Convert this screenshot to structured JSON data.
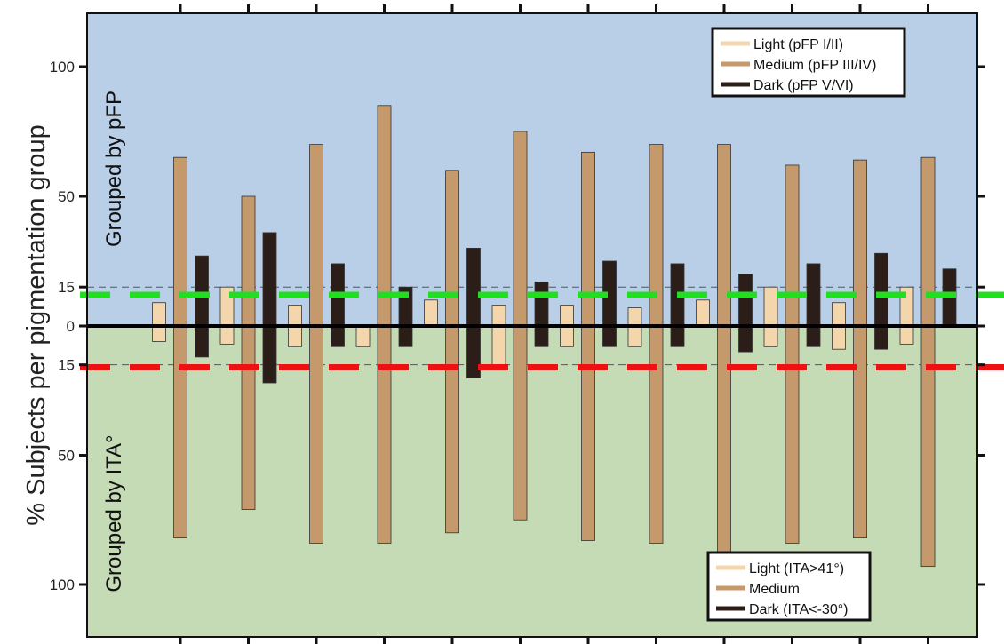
{
  "chart_data": {
    "type": "bar",
    "ylabel": "% Subjects per pigmentation group",
    "regions": {
      "top": {
        "label": "Grouped by pFP",
        "color": "#b9cfe8"
      },
      "bottom": {
        "label": "Grouped by ITA°",
        "color": "#c5dbb5"
      }
    },
    "y_top_ticks": [
      {
        "value": 15,
        "label": "15"
      },
      {
        "value": 50,
        "label": "50"
      },
      {
        "value": 100,
        "label": "100"
      }
    ],
    "y_bottom_ticks": [
      {
        "value": 15,
        "label": "15"
      },
      {
        "value": 50,
        "label": "50"
      },
      {
        "value": 100,
        "label": "100"
      }
    ],
    "zero_label": "0",
    "y_range_top": [
      0,
      100
    ],
    "y_range_bottom": [
      0,
      100
    ],
    "threshold_lines": [
      {
        "side": "top",
        "value": 12,
        "color": "#22dd22"
      },
      {
        "side": "bottom",
        "value": 16,
        "color": "#ee1111"
      }
    ],
    "reference_lines": [
      {
        "side": "top",
        "value": 15
      },
      {
        "side": "bottom",
        "value": 15
      }
    ],
    "series_colors": {
      "light": "#f4d6ac",
      "medium": "#c49a6c",
      "dark": "#2b1d17"
    },
    "top_legend": {
      "placement": "top-right",
      "entries": [
        {
          "label": "Light (pFP I/II)",
          "key": "light"
        },
        {
          "label": "Medium (pFP III/IV)",
          "key": "medium"
        },
        {
          "label": "Dark (pFP V/VI)",
          "key": "dark"
        }
      ]
    },
    "bottom_legend": {
      "placement": "bottom-right",
      "entries": [
        {
          "label": "Light (ITA>41°)",
          "key": "light"
        },
        {
          "label": "Medium",
          "key": "medium"
        },
        {
          "label": "Dark (ITA<-30°)",
          "key": "dark"
        }
      ]
    },
    "groups": [
      {
        "top": {
          "light": 9,
          "medium": 65,
          "dark": 27
        },
        "bottom": {
          "light": 6,
          "medium": 82,
          "dark": 12
        }
      },
      {
        "top": {
          "light": 15,
          "medium": 50,
          "dark": 36
        },
        "bottom": {
          "light": 7,
          "medium": 71,
          "dark": 22
        }
      },
      {
        "top": {
          "light": 8,
          "medium": 70,
          "dark": 24
        },
        "bottom": {
          "light": 8,
          "medium": 84,
          "dark": 8
        }
      },
      {
        "top": {
          "light": 0,
          "medium": 85,
          "dark": 15
        },
        "bottom": {
          "light": 8,
          "medium": 84,
          "dark": 8
        }
      },
      {
        "top": {
          "light": 10,
          "medium": 60,
          "dark": 30
        },
        "bottom": {
          "light": 0,
          "medium": 80,
          "dark": 20
        }
      },
      {
        "top": {
          "light": 8,
          "medium": 75,
          "dark": 17
        },
        "bottom": {
          "light": 15,
          "medium": 75,
          "dark": 8
        }
      },
      {
        "top": {
          "light": 8,
          "medium": 67,
          "dark": 25
        },
        "bottom": {
          "light": 8,
          "medium": 83,
          "dark": 8
        }
      },
      {
        "top": {
          "light": 7,
          "medium": 70,
          "dark": 24
        },
        "bottom": {
          "light": 8,
          "medium": 84,
          "dark": 8
        }
      },
      {
        "top": {
          "light": 10,
          "medium": 70,
          "dark": 20
        },
        "bottom": {
          "light": 0,
          "medium": 88,
          "dark": 10
        }
      },
      {
        "top": {
          "light": 15,
          "medium": 62,
          "dark": 24
        },
        "bottom": {
          "light": 8,
          "medium": 84,
          "dark": 8
        }
      },
      {
        "top": {
          "light": 9,
          "medium": 64,
          "dark": 28
        },
        "bottom": {
          "light": 9,
          "medium": 82,
          "dark": 9
        }
      },
      {
        "top": {
          "light": 15,
          "medium": 65,
          "dark": 22
        },
        "bottom": {
          "light": 7,
          "medium": 93,
          "dark": 0
        }
      }
    ]
  }
}
